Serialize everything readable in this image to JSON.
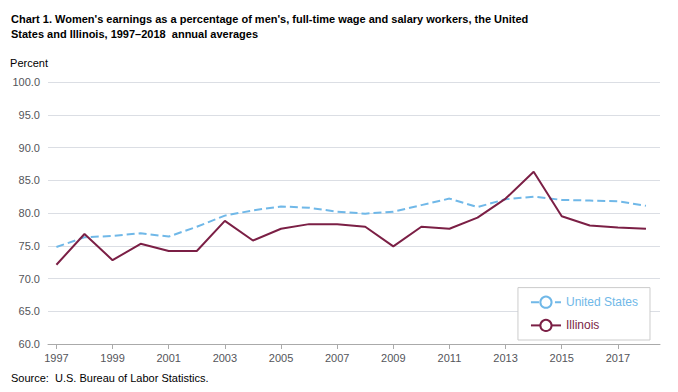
{
  "chart_data": {
    "type": "line",
    "title": "Chart 1. Women's earnings as a percentage of men's, full-time wage and salary workers, the United\nStates and Illinois, 1997–2018  annual averages",
    "ylabel": "Percent",
    "source": "Source:  U.S. Bureau of Labor Statistics.",
    "x": [
      1997,
      1998,
      1999,
      2000,
      2001,
      2002,
      2003,
      2004,
      2005,
      2006,
      2007,
      2008,
      2009,
      2010,
      2011,
      2012,
      2013,
      2014,
      2015,
      2016,
      2017,
      2018
    ],
    "series": [
      {
        "name": "United States",
        "color": "#70B8E8",
        "line_style": "dashed",
        "values": [
          74.8,
          76.3,
          76.5,
          76.9,
          76.4,
          77.9,
          79.6,
          80.4,
          81.0,
          80.8,
          80.2,
          79.9,
          80.2,
          81.2,
          82.2,
          80.9,
          82.1,
          82.5,
          82.0,
          81.9,
          81.8,
          81.1
        ]
      },
      {
        "name": "Illinois",
        "color": "#7B1F45",
        "line_style": "solid",
        "values": [
          72.1,
          76.8,
          72.8,
          75.3,
          74.2,
          74.2,
          78.8,
          75.8,
          77.6,
          78.3,
          78.3,
          77.9,
          74.9,
          77.9,
          77.6,
          79.3,
          82.2,
          86.3,
          79.5,
          78.1,
          77.8,
          77.6
        ]
      }
    ],
    "xlim": [
      1996.7,
      2018.5
    ],
    "xticks": [
      1997,
      1999,
      2001,
      2003,
      2005,
      2007,
      2009,
      2011,
      2013,
      2015,
      2017
    ],
    "ylim": [
      60.0,
      100.0
    ],
    "yticks": [
      {
        "value": 60,
        "label": "60.0"
      },
      {
        "value": 65,
        "label": "65.0"
      },
      {
        "value": 70,
        "label": "70.0"
      },
      {
        "value": 75,
        "label": "75.0"
      },
      {
        "value": 80,
        "label": "80.0"
      },
      {
        "value": 85,
        "label": "85.0"
      },
      {
        "value": 90,
        "label": "90.0"
      },
      {
        "value": 95,
        "label": "95.0"
      },
      {
        "value": 100,
        "label": "100.0"
      }
    ],
    "grid": true,
    "legend": "lower right"
  }
}
